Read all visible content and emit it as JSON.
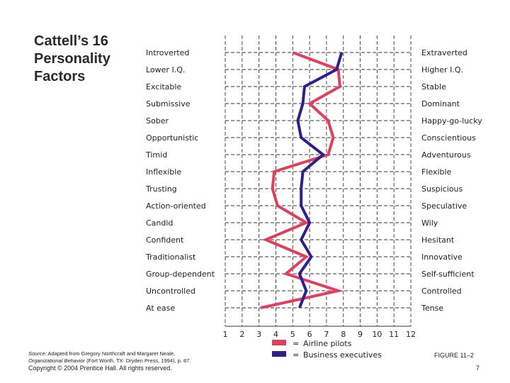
{
  "slide": {
    "title": "Cattell’s 16\nPersonality\nFactors",
    "source": {
      "prefix": "Source:",
      "line1": "Adapted from Gregory Northcraft and Margaret Neale,",
      "book": "Organizational Behavior",
      "line2": "(Fort Worth, TX: Dryden Press, 1994), p. 87."
    },
    "copyright": "Copyright © 2004 Prentice Hall. All rights reserved.",
    "figure_label": "FIGURE 11–2",
    "page_number": "7"
  },
  "chart_data": {
    "type": "line",
    "title": "",
    "xlabel": "",
    "ylabel": "",
    "x_ticks": [
      "1",
      "2",
      "3",
      "4",
      "5",
      "6",
      "7",
      "8",
      "9",
      "10",
      "11",
      "12"
    ],
    "xlim": [
      1,
      12
    ],
    "grid": true,
    "left_traits": [
      "Introverted",
      "Lower I.Q.",
      "Excitable",
      "Submissive",
      "Sober",
      "Opportunistic",
      "Timid",
      "Inflexible",
      "Trusting",
      "Action-oriented",
      "Candid",
      "Confident",
      "Traditionalist",
      "Group-dependent",
      "Uncontrolled",
      "At ease"
    ],
    "right_traits": [
      "Extraverted",
      "Higher I.Q.",
      "Stable",
      "Dominant",
      "Happy-go-lucky",
      "Conscientious",
      "Adventurous",
      "Flexible",
      "Suspicious",
      "Speculative",
      "Wily",
      "Hesitant",
      "Innovative",
      "Self-sufficient",
      "Controlled",
      "Tense"
    ],
    "series": [
      {
        "name": "Airline pilots",
        "color": "#e0405d",
        "values": [
          5.0,
          7.7,
          7.8,
          6.0,
          7.1,
          7.4,
          7.1,
          3.9,
          3.8,
          4.1,
          5.8,
          3.4,
          5.8,
          4.6,
          7.7,
          3.1
        ]
      },
      {
        "name": "Business executives",
        "color": "#2e1f8c",
        "values": [
          7.9,
          7.6,
          5.7,
          5.6,
          5.3,
          5.5,
          6.8,
          5.6,
          5.5,
          5.5,
          6.0,
          5.5,
          6.1,
          5.4,
          5.8,
          5.4
        ]
      }
    ],
    "legend": {
      "position": "bottom",
      "prefix": "="
    }
  }
}
